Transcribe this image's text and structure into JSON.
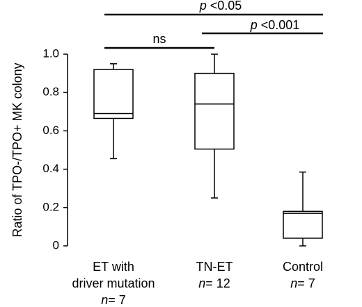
{
  "chart_data": {
    "type": "box",
    "ylabel": "Ratio of TPO-/TPO+ MK colony",
    "ylim": [
      0,
      1.0
    ],
    "yticks": [
      "0",
      "0.2",
      "0.4",
      "0.6",
      "0.8",
      "1.0"
    ],
    "grid": false,
    "categories": [
      {
        "lines": [
          "ET with",
          "driver mutation"
        ],
        "n_prefix": "n",
        "n_suffix": "= 7"
      },
      {
        "lines": [
          "TN-ET"
        ],
        "n_prefix": "n",
        "n_suffix": "= 12"
      },
      {
        "lines": [
          "Control"
        ],
        "n_prefix": "n",
        "n_suffix": "= 7"
      }
    ],
    "boxes": [
      {
        "min": 0.455,
        "q1": 0.665,
        "median": 0.69,
        "q3": 0.92,
        "max": 0.95
      },
      {
        "min": 0.25,
        "q1": 0.505,
        "median": 0.74,
        "q3": 0.9,
        "max": 1.0
      },
      {
        "min": 0.0,
        "q1": 0.04,
        "median": 0.17,
        "q3": 0.18,
        "max": 0.385
      }
    ],
    "comparisons": [
      {
        "from": 0,
        "to": 1,
        "label": "ns",
        "p_prefix": "",
        "p_value": ""
      },
      {
        "from": 1,
        "to": 2,
        "label": "",
        "p_prefix": "p",
        "p_value": " <0.001"
      },
      {
        "from": 0,
        "to": 2,
        "label": "",
        "p_prefix": "p",
        "p_value": " <0.05"
      }
    ]
  }
}
